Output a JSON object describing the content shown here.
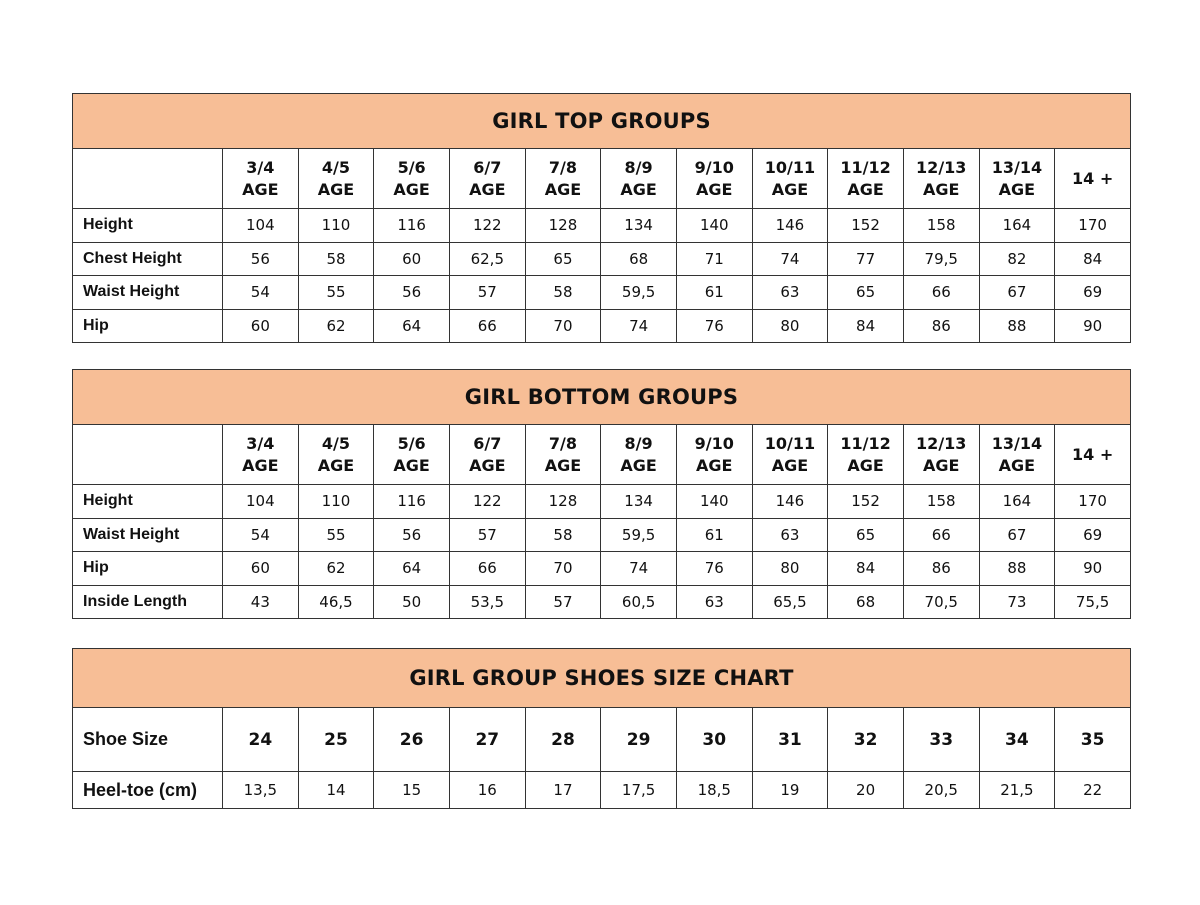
{
  "colors": {
    "title_bg": "#F7BE96",
    "border": "#333333"
  },
  "top_table": {
    "title": "GIRL TOP GROUPS",
    "columns": [
      [
        "3/4",
        "AGE"
      ],
      [
        "4/5",
        "AGE"
      ],
      [
        "5/6",
        "AGE"
      ],
      [
        "6/7",
        "AGE"
      ],
      [
        "7/8",
        "AGE"
      ],
      [
        "8/9",
        "AGE"
      ],
      [
        "9/10",
        "AGE"
      ],
      [
        "10/11",
        "AGE"
      ],
      [
        "11/12",
        "AGE"
      ],
      [
        "12/13",
        "AGE"
      ],
      [
        "13/14",
        "AGE"
      ],
      [
        "14 +"
      ]
    ],
    "rows": [
      {
        "label": "Height",
        "values": [
          "104",
          "110",
          "116",
          "122",
          "128",
          "134",
          "140",
          "146",
          "152",
          "158",
          "164",
          "170"
        ]
      },
      {
        "label": "Chest Height",
        "values": [
          "56",
          "58",
          "60",
          "62,5",
          "65",
          "68",
          "71",
          "74",
          "77",
          "79,5",
          "82",
          "84"
        ]
      },
      {
        "label": "Waist Height",
        "values": [
          "54",
          "55",
          "56",
          "57",
          "58",
          "59,5",
          "61",
          "63",
          "65",
          "66",
          "67",
          "69"
        ]
      },
      {
        "label": "Hip",
        "values": [
          "60",
          "62",
          "64",
          "66",
          "70",
          "74",
          "76",
          "80",
          "84",
          "86",
          "88",
          "90"
        ]
      }
    ]
  },
  "bottom_table": {
    "title": "GIRL BOTTOM GROUPS",
    "columns": [
      [
        "3/4",
        "AGE"
      ],
      [
        "4/5",
        "AGE"
      ],
      [
        "5/6",
        "AGE"
      ],
      [
        "6/7",
        "AGE"
      ],
      [
        "7/8",
        "AGE"
      ],
      [
        "8/9",
        "AGE"
      ],
      [
        "9/10",
        "AGE"
      ],
      [
        "10/11",
        "AGE"
      ],
      [
        "11/12",
        "AGE"
      ],
      [
        "12/13",
        "AGE"
      ],
      [
        "13/14",
        "AGE"
      ],
      [
        "14 +"
      ]
    ],
    "rows": [
      {
        "label": "Height",
        "values": [
          "104",
          "110",
          "116",
          "122",
          "128",
          "134",
          "140",
          "146",
          "152",
          "158",
          "164",
          "170"
        ]
      },
      {
        "label": "Waist Height",
        "values": [
          "54",
          "55",
          "56",
          "57",
          "58",
          "59,5",
          "61",
          "63",
          "65",
          "66",
          "67",
          "69"
        ]
      },
      {
        "label": "Hip",
        "values": [
          "60",
          "62",
          "64",
          "66",
          "70",
          "74",
          "76",
          "80",
          "84",
          "86",
          "88",
          "90"
        ]
      },
      {
        "label": "Inside Length",
        "values": [
          "43",
          "46,5",
          "50",
          "53,5",
          "57",
          "60,5",
          "63",
          "65,5",
          "68",
          "70,5",
          "73",
          "75,5"
        ]
      }
    ]
  },
  "shoes_table": {
    "title": "GIRL GROUP SHOES SIZE CHART",
    "header_label": "Shoe Size",
    "sizes": [
      "24",
      "25",
      "26",
      "27",
      "28",
      "29",
      "30",
      "31",
      "32",
      "33",
      "34",
      "35"
    ],
    "rows": [
      {
        "label": "Heel-toe (cm)",
        "values": [
          "13,5",
          "14",
          "15",
          "16",
          "17",
          "17,5",
          "18,5",
          "19",
          "20",
          "20,5",
          "21,5",
          "22"
        ]
      }
    ]
  }
}
